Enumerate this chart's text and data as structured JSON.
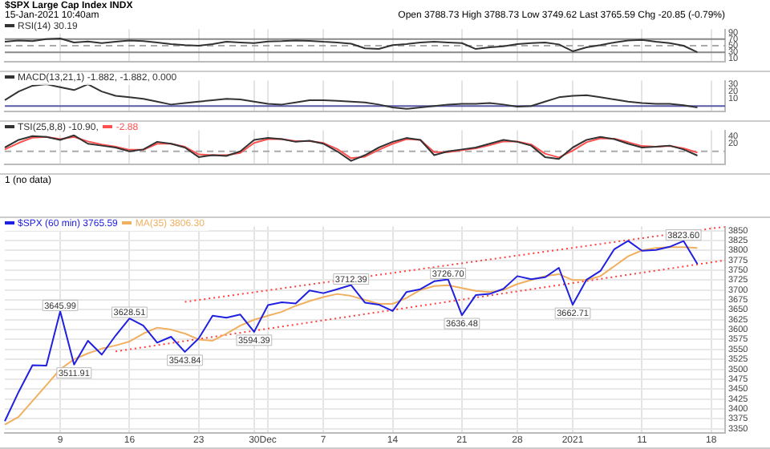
{
  "chart_data": [
    {
      "type": "line",
      "title": "$SPX Large Cap Index INDX",
      "subtitle": "15-Jan-2021 10:40am",
      "annotations": [
        "Open 3788.73 High 3788.73 Low 3749.62 Last 3765.59 Chg -20.85 (-0.79%)"
      ],
      "series": [
        {
          "name": "RSI(14) 30.19",
          "color": "#333333",
          "values": [
            62,
            66,
            64,
            70,
            72,
            60,
            63,
            58,
            62,
            66,
            64,
            60,
            55,
            52,
            50,
            55,
            62,
            60,
            58,
            63,
            64,
            66,
            65,
            62,
            60,
            56,
            42,
            40,
            52,
            55,
            60,
            62,
            60,
            58,
            40,
            45,
            48,
            55,
            58,
            60,
            54,
            33,
            45,
            52,
            60,
            66,
            68,
            62,
            58,
            50,
            30,
            null,
            null
          ]
        }
      ],
      "ylim": [
        0,
        100
      ],
      "yticks": [
        10,
        30,
        50,
        70,
        90
      ],
      "grid": "x",
      "legend": "top left",
      "tick_labels": "y",
      "ref_lines": [
        {
          "axis": "y",
          "value": 70,
          "color": "#888888"
        },
        {
          "axis": "y",
          "value": 50,
          "color": "#aaaaaa",
          "line_style": "dashed"
        },
        {
          "axis": "y",
          "value": 30,
          "color": "#888888"
        }
      ]
    },
    {
      "type": "line",
      "series": [
        {
          "name": "MACD(13,21,1) -1.882, -1.882, 0.000",
          "color": "#333333",
          "values": [
            8,
            20,
            28,
            30,
            26,
            22,
            30,
            20,
            14,
            12,
            10,
            6,
            2,
            4,
            6,
            8,
            10,
            9,
            6,
            3,
            2,
            5,
            8,
            8,
            7,
            6,
            5,
            2,
            -2,
            -4,
            -2,
            0,
            2,
            3,
            3,
            4,
            2,
            -1,
            0,
            6,
            12,
            14,
            15,
            12,
            9,
            6,
            4,
            3,
            3,
            1,
            -2,
            null,
            null
          ]
        }
      ],
      "ylim": [
        -8,
        35
      ],
      "yticks": [
        10,
        20,
        30
      ],
      "grid": "x",
      "legend": "top left",
      "tick_labels": "y",
      "ref_lines": [
        {
          "axis": "y",
          "value": 0,
          "color": "#5a5aa8"
        }
      ]
    },
    {
      "type": "line",
      "series": [
        {
          "name": "TSI(25,8,8) -10.90,",
          "color": "#333333",
          "values": [
            10,
            30,
            40,
            38,
            30,
            42,
            20,
            15,
            10,
            0,
            5,
            25,
            20,
            10,
            -15,
            -10,
            -12,
            0,
            30,
            35,
            32,
            25,
            28,
            20,
            0,
            -25,
            -10,
            10,
            25,
            35,
            30,
            -10,
            0,
            5,
            10,
            20,
            30,
            25,
            15,
            -15,
            -20,
            10,
            30,
            38,
            32,
            20,
            10,
            12,
            15,
            5,
            -11,
            null,
            null
          ]
        },
        {
          "name": "-2.88",
          "color": "#ff5050",
          "values": [
            5,
            22,
            36,
            38,
            32,
            38,
            26,
            18,
            12,
            4,
            4,
            20,
            20,
            12,
            -8,
            -10,
            -10,
            -4,
            22,
            32,
            32,
            27,
            27,
            22,
            6,
            -18,
            -14,
            4,
            20,
            32,
            30,
            -2,
            -2,
            3,
            8,
            16,
            26,
            26,
            18,
            -6,
            -16,
            2,
            24,
            34,
            33,
            24,
            14,
            12,
            14,
            8,
            -3,
            null,
            null
          ]
        }
      ],
      "ylim": [
        -35,
        55
      ],
      "yticks": [
        20,
        40
      ],
      "grid": "x",
      "legend": "top left",
      "tick_labels": "y",
      "ref_lines": [
        {
          "axis": "y",
          "value": 0,
          "color": "#aaaaaa",
          "line_style": "dashed"
        }
      ]
    },
    {
      "type": "other",
      "title": "1 (no data)"
    },
    {
      "type": "line",
      "categories": [
        null,
        null,
        null,
        null,
        "9",
        null,
        null,
        null,
        null,
        "16",
        null,
        null,
        null,
        null,
        "23",
        null,
        null,
        null,
        "30",
        "Dec",
        null,
        null,
        null,
        "7",
        null,
        null,
        null,
        null,
        "14",
        null,
        null,
        null,
        null,
        "21",
        null,
        null,
        null,
        "28",
        null,
        null,
        null,
        "2021",
        null,
        null,
        null,
        null,
        "11",
        null,
        null,
        null,
        null,
        "18",
        null
      ],
      "series": [
        {
          "name": "$SPX (60 min) 3765.59",
          "color": "#2020e0",
          "values": [
            3369,
            3443,
            3510,
            3509,
            3645.99,
            3511.91,
            3572,
            3537,
            3585,
            3628.51,
            3610,
            3567,
            3582,
            3543.84,
            3578,
            3635,
            3630,
            3638,
            3594.39,
            3662,
            3669,
            3666,
            3699,
            3692,
            3702,
            3712.39,
            3668,
            3663,
            3647,
            3695,
            3702,
            3722,
            3726.7,
            3636.48,
            3687,
            3690,
            3703,
            3735,
            3727,
            3732,
            3756,
            3662.71,
            3726,
            3748,
            3803,
            3824,
            3799,
            3801,
            3809,
            3823.6,
            3765.59,
            null,
            null
          ]
        },
        {
          "name": "MA(35) 3806.30",
          "color": "#f0b060",
          "values": [
            3360,
            3380,
            3420,
            3460,
            3500,
            3525,
            3540,
            3552,
            3560,
            3570,
            3590,
            3605,
            3600,
            3590,
            3575,
            3572,
            3590,
            3610,
            3625,
            3635,
            3645,
            3660,
            3672,
            3682,
            3690,
            3685,
            3675,
            3665,
            3665,
            3680,
            3700,
            3710,
            3712,
            3705,
            3698,
            3695,
            3700,
            3715,
            3725,
            3735,
            3740,
            3725,
            3725,
            3735,
            3760,
            3785,
            3800,
            3806,
            3808,
            3808,
            3806,
            null,
            null
          ]
        },
        {
          "color": "#ff4040",
          "line_style": "dotted",
          "values": [
            null,
            null,
            null,
            null,
            null,
            null,
            null,
            null,
            null,
            null,
            null,
            null,
            null,
            3670,
            null,
            null,
            null,
            null,
            null,
            null,
            null,
            null,
            null,
            null,
            null,
            null,
            null,
            null,
            null,
            null,
            null,
            null,
            null,
            null,
            null,
            null,
            null,
            null,
            null,
            null,
            null,
            null,
            null,
            null,
            null,
            null,
            null,
            null,
            null,
            null,
            null,
            null,
            3860
          ]
        },
        {
          "color": "#ff4040",
          "line_style": "dotted",
          "values": [
            null,
            null,
            null,
            null,
            null,
            null,
            null,
            null,
            3545,
            null,
            null,
            null,
            null,
            null,
            null,
            null,
            null,
            null,
            null,
            null,
            null,
            null,
            null,
            null,
            null,
            null,
            null,
            null,
            null,
            null,
            null,
            null,
            null,
            null,
            null,
            null,
            null,
            null,
            null,
            null,
            null,
            null,
            null,
            null,
            null,
            null,
            null,
            null,
            null,
            null,
            null,
            null,
            3775
          ]
        }
      ],
      "ylim": [
        3340,
        3860
      ],
      "yticks": [
        3350,
        3375,
        3400,
        3425,
        3450,
        3475,
        3500,
        3525,
        3550,
        3575,
        3600,
        3625,
        3650,
        3675,
        3700,
        3725,
        3750,
        3775,
        3800,
        3825,
        3850
      ],
      "grid": true,
      "legend": "top left",
      "annotations": [
        {
          "text": "3645.99",
          "y": 3645.99
        },
        {
          "text": "3511.91",
          "y": 3511.91
        },
        {
          "text": "3628.51",
          "y": 3628.51
        },
        {
          "text": "3543.84",
          "y": 3543.84
        },
        {
          "text": "3594.39",
          "y": 3594.39
        },
        {
          "text": "3712.39",
          "y": 3712.39
        },
        {
          "text": "3726.70",
          "y": 3726.7
        },
        {
          "text": "3636.48",
          "y": 3636.48
        },
        {
          "text": "3662.71",
          "y": 3662.71
        },
        {
          "text": "3823.60",
          "y": 3823.6
        }
      ]
    }
  ]
}
